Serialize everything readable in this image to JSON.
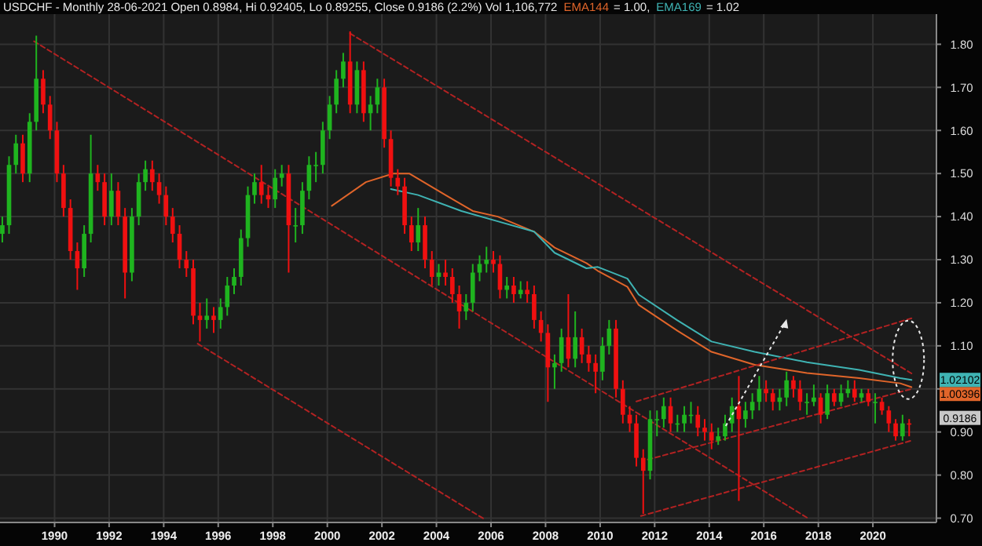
{
  "chart_data": {
    "type": "candlestick",
    "title": "USDCHF - Monthly 28-06-2021 Open 0.8984, Hi 0.92405, Lo 0.89255, Close 0.9186 (2.2%) Vol 1,106,772",
    "x": [
      "1988-02",
      "1988-05",
      "1988-08",
      "1988-11",
      "1989-02",
      "1989-05",
      "1989-08",
      "1989-11",
      "1990-02",
      "1990-05",
      "1990-08",
      "1990-11",
      "1991-02",
      "1991-05",
      "1991-08",
      "1991-11",
      "1992-02",
      "1992-05",
      "1992-08",
      "1992-11",
      "1993-02",
      "1993-05",
      "1993-08",
      "1993-11",
      "1994-02",
      "1994-05",
      "1994-08",
      "1994-11",
      "1995-02",
      "1995-05",
      "1995-08",
      "1995-11",
      "1996-02",
      "1996-05",
      "1996-08",
      "1996-11",
      "1997-02",
      "1997-05",
      "1997-08",
      "1997-11",
      "1998-02",
      "1998-05",
      "1998-08",
      "1998-11",
      "1999-02",
      "1999-05",
      "1999-08",
      "1999-11",
      "2000-02",
      "2000-05",
      "2000-08",
      "2000-11",
      "2001-02",
      "2001-05",
      "2001-08",
      "2001-11",
      "2002-02",
      "2002-05",
      "2002-08",
      "2002-11",
      "2003-02",
      "2003-05",
      "2003-08",
      "2003-11",
      "2004-02",
      "2004-05",
      "2004-08",
      "2004-11",
      "2005-02",
      "2005-05",
      "2005-08",
      "2005-11",
      "2006-02",
      "2006-05",
      "2006-08",
      "2006-11",
      "2007-02",
      "2007-05",
      "2007-08",
      "2007-11",
      "2008-02",
      "2008-05",
      "2008-08",
      "2008-11",
      "2009-02",
      "2009-05",
      "2009-08",
      "2009-11",
      "2010-02",
      "2010-05",
      "2010-08",
      "2010-11",
      "2011-02",
      "2011-05",
      "2011-08",
      "2011-11",
      "2012-02",
      "2012-05",
      "2012-08",
      "2012-11",
      "2013-02",
      "2013-05",
      "2013-08",
      "2013-11",
      "2014-02",
      "2014-05",
      "2014-08",
      "2014-11",
      "2015-02",
      "2015-05",
      "2015-08",
      "2015-11",
      "2016-02",
      "2016-05",
      "2016-08",
      "2016-11",
      "2017-02",
      "2017-05",
      "2017-08",
      "2017-11",
      "2018-02",
      "2018-05",
      "2018-08",
      "2018-11",
      "2019-02",
      "2019-05",
      "2019-08",
      "2019-11",
      "2020-02",
      "2020-05",
      "2020-08",
      "2020-11",
      "2021-02",
      "2021-05"
    ],
    "ohlc": [
      [
        1.36,
        1.4,
        1.34,
        1.38
      ],
      [
        1.38,
        1.54,
        1.36,
        1.52
      ],
      [
        1.52,
        1.59,
        1.5,
        1.57
      ],
      [
        1.57,
        1.59,
        1.48,
        1.5
      ],
      [
        1.5,
        1.64,
        1.48,
        1.62
      ],
      [
        1.62,
        1.82,
        1.6,
        1.72
      ],
      [
        1.72,
        1.74,
        1.64,
        1.66
      ],
      [
        1.66,
        1.68,
        1.58,
        1.6
      ],
      [
        1.6,
        1.62,
        1.48,
        1.5
      ],
      [
        1.5,
        1.52,
        1.4,
        1.42
      ],
      [
        1.42,
        1.44,
        1.3,
        1.32
      ],
      [
        1.32,
        1.34,
        1.23,
        1.28
      ],
      [
        1.28,
        1.38,
        1.26,
        1.36
      ],
      [
        1.36,
        1.59,
        1.34,
        1.5
      ],
      [
        1.5,
        1.52,
        1.46,
        1.48
      ],
      [
        1.48,
        1.5,
        1.38,
        1.4
      ],
      [
        1.4,
        1.5,
        1.38,
        1.46
      ],
      [
        1.46,
        1.48,
        1.38,
        1.4
      ],
      [
        1.4,
        1.42,
        1.21,
        1.27
      ],
      [
        1.27,
        1.42,
        1.25,
        1.4
      ],
      [
        1.4,
        1.5,
        1.38,
        1.48
      ],
      [
        1.48,
        1.53,
        1.46,
        1.51
      ],
      [
        1.51,
        1.53,
        1.46,
        1.48
      ],
      [
        1.48,
        1.5,
        1.43,
        1.45
      ],
      [
        1.45,
        1.47,
        1.38,
        1.4
      ],
      [
        1.4,
        1.42,
        1.34,
        1.36
      ],
      [
        1.36,
        1.38,
        1.28,
        1.3
      ],
      [
        1.3,
        1.32,
        1.26,
        1.28
      ],
      [
        1.28,
        1.3,
        1.15,
        1.17
      ],
      [
        1.17,
        1.2,
        1.11,
        1.16
      ],
      [
        1.16,
        1.21,
        1.14,
        1.17
      ],
      [
        1.17,
        1.19,
        1.13,
        1.16
      ],
      [
        1.16,
        1.21,
        1.14,
        1.19
      ],
      [
        1.19,
        1.26,
        1.17,
        1.24
      ],
      [
        1.24,
        1.28,
        1.22,
        1.26
      ],
      [
        1.26,
        1.37,
        1.24,
        1.35
      ],
      [
        1.35,
        1.47,
        1.33,
        1.45
      ],
      [
        1.45,
        1.5,
        1.43,
        1.48
      ],
      [
        1.48,
        1.52,
        1.43,
        1.45
      ],
      [
        1.45,
        1.47,
        1.42,
        1.44
      ],
      [
        1.44,
        1.51,
        1.42,
        1.49
      ],
      [
        1.49,
        1.52,
        1.47,
        1.5
      ],
      [
        1.5,
        1.52,
        1.27,
        1.38
      ],
      [
        1.38,
        1.42,
        1.34,
        1.38
      ],
      [
        1.38,
        1.48,
        1.36,
        1.46
      ],
      [
        1.46,
        1.54,
        1.44,
        1.52
      ],
      [
        1.52,
        1.55,
        1.48,
        1.52
      ],
      [
        1.52,
        1.62,
        1.5,
        1.6
      ],
      [
        1.6,
        1.68,
        1.58,
        1.66
      ],
      [
        1.66,
        1.74,
        1.64,
        1.72
      ],
      [
        1.72,
        1.78,
        1.7,
        1.76
      ],
      [
        1.76,
        1.83,
        1.64,
        1.66
      ],
      [
        1.66,
        1.76,
        1.64,
        1.74
      ],
      [
        1.74,
        1.76,
        1.62,
        1.64
      ],
      [
        1.64,
        1.68,
        1.6,
        1.66
      ],
      [
        1.66,
        1.72,
        1.64,
        1.7
      ],
      [
        1.7,
        1.72,
        1.56,
        1.58
      ],
      [
        1.58,
        1.6,
        1.47,
        1.49
      ],
      [
        1.49,
        1.51,
        1.45,
        1.47
      ],
      [
        1.47,
        1.49,
        1.36,
        1.38
      ],
      [
        1.38,
        1.4,
        1.32,
        1.34
      ],
      [
        1.34,
        1.42,
        1.32,
        1.38
      ],
      [
        1.38,
        1.4,
        1.28,
        1.3
      ],
      [
        1.3,
        1.32,
        1.24,
        1.26
      ],
      [
        1.26,
        1.29,
        1.24,
        1.27
      ],
      [
        1.27,
        1.3,
        1.24,
        1.26
      ],
      [
        1.26,
        1.28,
        1.2,
        1.22
      ],
      [
        1.22,
        1.24,
        1.14,
        1.18
      ],
      [
        1.18,
        1.22,
        1.16,
        1.2
      ],
      [
        1.2,
        1.29,
        1.18,
        1.27
      ],
      [
        1.27,
        1.31,
        1.25,
        1.29
      ],
      [
        1.29,
        1.33,
        1.27,
        1.3
      ],
      [
        1.3,
        1.32,
        1.27,
        1.29
      ],
      [
        1.29,
        1.31,
        1.21,
        1.23
      ],
      [
        1.23,
        1.26,
        1.21,
        1.24
      ],
      [
        1.24,
        1.26,
        1.2,
        1.22
      ],
      [
        1.22,
        1.25,
        1.21,
        1.23
      ],
      [
        1.23,
        1.25,
        1.2,
        1.22
      ],
      [
        1.22,
        1.24,
        1.14,
        1.16
      ],
      [
        1.16,
        1.18,
        1.11,
        1.13
      ],
      [
        1.13,
        1.15,
        0.97,
        1.05
      ],
      [
        1.05,
        1.08,
        1.0,
        1.06
      ],
      [
        1.06,
        1.14,
        1.04,
        1.12
      ],
      [
        1.12,
        1.22,
        1.05,
        1.07
      ],
      [
        1.07,
        1.18,
        1.05,
        1.12
      ],
      [
        1.12,
        1.14,
        1.06,
        1.08
      ],
      [
        1.08,
        1.1,
        1.04,
        1.06
      ],
      [
        1.06,
        1.08,
        0.99,
        1.04
      ],
      [
        1.04,
        1.12,
        1.02,
        1.1
      ],
      [
        1.1,
        1.16,
        1.08,
        1.14
      ],
      [
        1.14,
        1.16,
        0.98,
        1.0
      ],
      [
        1.0,
        1.02,
        0.92,
        0.94
      ],
      [
        0.94,
        0.96,
        0.9,
        0.92
      ],
      [
        0.92,
        0.94,
        0.82,
        0.84
      ],
      [
        0.84,
        0.86,
        0.71,
        0.81
      ],
      [
        0.81,
        0.95,
        0.79,
        0.93
      ],
      [
        0.93,
        0.95,
        0.89,
        0.93
      ],
      [
        0.93,
        0.98,
        0.91,
        0.96
      ],
      [
        0.96,
        0.98,
        0.9,
        0.92
      ],
      [
        0.92,
        0.94,
        0.9,
        0.92
      ],
      [
        0.92,
        0.96,
        0.9,
        0.94
      ],
      [
        0.94,
        0.97,
        0.92,
        0.94
      ],
      [
        0.94,
        0.96,
        0.89,
        0.91
      ],
      [
        0.91,
        0.93,
        0.88,
        0.9
      ],
      [
        0.9,
        0.92,
        0.86,
        0.88
      ],
      [
        0.88,
        0.91,
        0.87,
        0.89
      ],
      [
        0.89,
        0.94,
        0.88,
        0.92
      ],
      [
        0.92,
        0.98,
        0.9,
        0.96
      ],
      [
        0.96,
        1.03,
        0.74,
        0.93
      ],
      [
        0.93,
        0.97,
        0.91,
        0.95
      ],
      [
        0.95,
        0.99,
        0.93,
        0.97
      ],
      [
        0.97,
        1.03,
        0.95,
        1.0
      ],
      [
        1.0,
        1.02,
        0.97,
        0.99
      ],
      [
        0.99,
        1.0,
        0.95,
        0.97
      ],
      [
        0.97,
        1.0,
        0.95,
        0.98
      ],
      [
        0.98,
        1.04,
        0.96,
        1.02
      ],
      [
        1.02,
        1.03,
        0.98,
        1.0
      ],
      [
        1.0,
        1.02,
        0.95,
        0.97
      ],
      [
        0.97,
        0.99,
        0.94,
        0.97
      ],
      [
        0.97,
        1.01,
        0.96,
        0.98
      ],
      [
        0.98,
        0.99,
        0.92,
        0.94
      ],
      [
        0.94,
        1.01,
        0.93,
        0.99
      ],
      [
        0.99,
        1.0,
        0.96,
        0.97
      ],
      [
        0.97,
        1.01,
        0.96,
        0.99
      ],
      [
        0.99,
        1.02,
        0.98,
        1.0
      ],
      [
        1.0,
        1.02,
        0.97,
        0.98
      ],
      [
        0.98,
        1.0,
        0.97,
        0.99
      ],
      [
        0.99,
        1.0,
        0.96,
        0.97
      ],
      [
        0.97,
        0.99,
        0.92,
        0.97
      ],
      [
        0.97,
        0.98,
        0.94,
        0.95
      ],
      [
        0.95,
        0.96,
        0.9,
        0.92
      ],
      [
        0.92,
        0.93,
        0.88,
        0.89
      ],
      [
        0.89,
        0.94,
        0.88,
        0.92
      ],
      [
        0.92,
        0.93,
        0.89,
        0.9186
      ]
    ],
    "series": [
      {
        "type": "line",
        "name": "EMA144",
        "color": "#e0652a",
        "x": [
          "2000-03",
          "2001-06",
          "2002-06",
          "2003-01",
          "2004-05",
          "2005-05",
          "2006-04",
          "2007-08",
          "2008-05",
          "2009-07",
          "2009-12",
          "2011-01",
          "2011-06",
          "2012-11",
          "2014-02",
          "2015-09",
          "2017-08",
          "2019-07",
          "2021-01",
          "2021-06"
        ],
        "values": [
          1.425,
          1.48,
          1.5,
          1.5,
          1.45,
          1.413,
          1.4,
          1.365,
          1.328,
          1.292,
          1.274,
          1.237,
          1.195,
          1.135,
          1.086,
          1.056,
          1.037,
          1.025,
          1.013,
          1.004
        ]
      },
      {
        "type": "line",
        "name": "EMA169",
        "color": "#3fb3b3",
        "x": [
          "2002-05",
          "2003-05",
          "2004-12",
          "2006-04",
          "2007-08",
          "2008-05",
          "2009-07",
          "2009-12",
          "2011-01",
          "2011-06",
          "2012-11",
          "2014-02",
          "2015-09",
          "2017-08",
          "2019-07",
          "2021-01",
          "2021-06"
        ],
        "values": [
          1.464,
          1.45,
          1.413,
          1.389,
          1.365,
          1.316,
          1.28,
          1.283,
          1.256,
          1.219,
          1.159,
          1.11,
          1.086,
          1.062,
          1.044,
          1.025,
          1.021
        ]
      },
      {
        "type": "line",
        "color": "#b22222",
        "line_style": "dashed",
        "x": [
          "1989-04",
          "2017-09"
        ],
        "values": [
          1.807,
          0.698
        ]
      },
      {
        "type": "line",
        "color": "#b22222",
        "line_style": "dashed",
        "x": [
          "2000-11",
          "2021-06"
        ],
        "values": [
          1.825,
          1.036
        ]
      },
      {
        "type": "line",
        "color": "#b22222",
        "line_style": "dashed",
        "x": [
          "1995-04",
          "2005-10"
        ],
        "values": [
          1.105,
          0.698
        ]
      },
      {
        "type": "line",
        "color": "#b22222",
        "line_style": "dashed",
        "x": [
          "2011-05",
          "2021-06"
        ],
        "values": [
          0.971,
          1.164
        ]
      },
      {
        "type": "line",
        "color": "#b22222",
        "line_style": "dashed",
        "x": [
          "2011-10",
          "2021-06"
        ],
        "values": [
          0.836,
          1.0
        ]
      },
      {
        "type": "line",
        "color": "#b22222",
        "line_style": "dashed",
        "x": [
          "2011-07",
          "2021-06"
        ],
        "values": [
          0.705,
          0.88
        ]
      }
    ],
    "annotations": [
      "= 1.00,",
      "= 1.02",
      {
        "text": "1.00396",
        "x": "2021-06",
        "y": 1.00396
      },
      {
        "text": "1.02102",
        "x": "2021-06",
        "y": 1.02102
      },
      {
        "text": "0.9186",
        "x": "2021-06",
        "y": 0.9186
      }
    ],
    "xlim": [
      "1988-01",
      "2022-05"
    ],
    "xticks": [
      "1990",
      "1992",
      "1994",
      "1996",
      "1998",
      "2000",
      "2002",
      "2004",
      "2006",
      "2008",
      "2010",
      "2012",
      "2014",
      "2016",
      "2018",
      "2020"
    ],
    "ylim": [
      0.69,
      1.87
    ],
    "yticks": [
      {
        "value": 0.7,
        "label": "0.70"
      },
      {
        "value": 0.8,
        "label": "0.80"
      },
      {
        "value": 0.9,
        "label": "0.90"
      },
      {
        "value": 1.0,
        "label": null
      },
      {
        "value": 1.1,
        "label": "1.10"
      },
      {
        "value": 1.2,
        "label": "1.20"
      },
      {
        "value": 1.3,
        "label": "1.30"
      },
      {
        "value": 1.4,
        "label": "1.40"
      },
      {
        "value": 1.5,
        "label": "1.50"
      },
      {
        "value": 1.6,
        "label": "1.60"
      },
      {
        "value": 1.7,
        "label": "1.70"
      },
      {
        "value": 1.8,
        "label": "1.80"
      }
    ],
    "grid": true,
    "legend": "top"
  }
}
